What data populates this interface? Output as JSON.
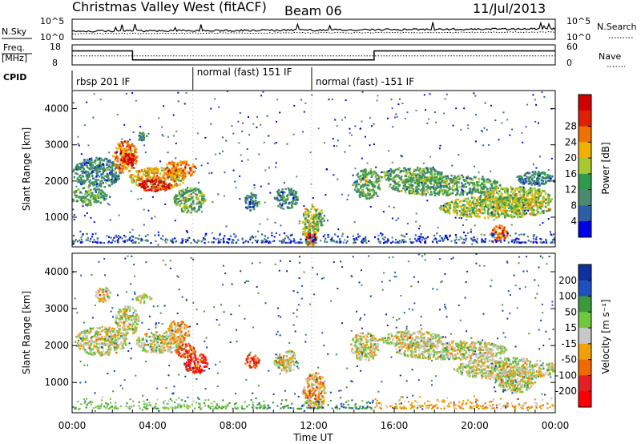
{
  "header": {
    "station": "Christmas Valley West (fitACF)",
    "beam": "Beam 06",
    "date": "11/Jul/2013"
  },
  "chart_data": [
    {
      "type": "line",
      "panel": "noise",
      "left_label": "N.Sky",
      "right_label": "N.Search",
      "left_ticks": [
        "10^5",
        "10^0"
      ],
      "right_ticks": [
        "10^5",
        "10^0"
      ]
    },
    {
      "type": "line",
      "panel": "frequency",
      "ylabel": "Freq.\n[MHz]",
      "left_ticks": [
        18,
        8
      ],
      "right_label": "Nave",
      "right_ticks": [
        60,
        0
      ],
      "freq_steps": [
        {
          "x0": 0.0,
          "x1": 3.0,
          "value": 15.0
        },
        {
          "x0": 3.0,
          "x1": 15.0,
          "value": 10.5
        },
        {
          "x0": 15.0,
          "x1": 24.0,
          "value": 15.0
        }
      ],
      "nave_level": 12.5
    },
    {
      "type": "table",
      "panel": "cpid",
      "label": "CPID",
      "segments": [
        {
          "start": 0.0,
          "text": "rbsp 201 IF"
        },
        {
          "start": 6.0,
          "text": "normal (fast) 151 IF"
        },
        {
          "start": 11.9,
          "text": "normal (fast) -151 IF"
        }
      ]
    },
    {
      "type": "heatmap",
      "panel": "power",
      "ylabel": "Slant Range [km]",
      "xlim": [
        0,
        24
      ],
      "ylim": [
        180,
        4500
      ],
      "yticks": [
        1000,
        2000,
        3000,
        4000
      ],
      "colorbar": {
        "label": "Power [dB]",
        "ticks": [
          4,
          8,
          12,
          16,
          20,
          24,
          28
        ],
        "colors": [
          "#0000e6",
          "#2b5fa8",
          "#4c8a6f",
          "#2e9a4a",
          "#a8c830",
          "#f0b000",
          "#f07000",
          "#e02000",
          "#d00000"
        ]
      },
      "regions": [
        {
          "x": 1.2,
          "y": 2250,
          "rx": 1.2,
          "ry": 420,
          "level": 2
        },
        {
          "x": 2.6,
          "y": 2700,
          "rx": 0.6,
          "ry": 450,
          "level": 6
        },
        {
          "x": 2.8,
          "y": 2600,
          "rx": 0.3,
          "ry": 180,
          "level": 8
        },
        {
          "x": 4.2,
          "y": 2100,
          "rx": 1.4,
          "ry": 300,
          "level": 5
        },
        {
          "x": 4.1,
          "y": 1900,
          "rx": 0.9,
          "ry": 160,
          "level": 8
        },
        {
          "x": 5.3,
          "y": 2350,
          "rx": 0.8,
          "ry": 250,
          "level": 6
        },
        {
          "x": 5.8,
          "y": 1500,
          "rx": 0.8,
          "ry": 350,
          "level": 3
        },
        {
          "x": 0.8,
          "y": 1600,
          "rx": 0.9,
          "ry": 250,
          "level": 3
        },
        {
          "x": 3.4,
          "y": 3250,
          "rx": 0.3,
          "ry": 120,
          "level": 2
        },
        {
          "x": 8.9,
          "y": 1450,
          "rx": 0.4,
          "ry": 250,
          "level": 2
        },
        {
          "x": 10.6,
          "y": 1550,
          "rx": 0.6,
          "ry": 300,
          "level": 2
        },
        {
          "x": 11.8,
          "y": 800,
          "rx": 0.4,
          "ry": 600,
          "level": 4
        },
        {
          "x": 11.8,
          "y": 400,
          "rx": 0.25,
          "ry": 180,
          "level": 7
        },
        {
          "x": 12.2,
          "y": 1000,
          "rx": 0.3,
          "ry": 250,
          "level": 3
        },
        {
          "x": 14.6,
          "y": 1950,
          "rx": 0.7,
          "ry": 420,
          "level": 3
        },
        {
          "x": 16.8,
          "y": 2200,
          "rx": 1.6,
          "ry": 220,
          "level": 3
        },
        {
          "x": 18.5,
          "y": 1900,
          "rx": 2.8,
          "ry": 280,
          "level": 3
        },
        {
          "x": 21.0,
          "y": 1300,
          "rx": 2.8,
          "ry": 300,
          "level": 4
        },
        {
          "x": 22.0,
          "y": 1550,
          "rx": 1.8,
          "ry": 320,
          "level": 4
        },
        {
          "x": 21.2,
          "y": 600,
          "rx": 0.4,
          "ry": 250,
          "level": 6
        },
        {
          "x": 23.0,
          "y": 2100,
          "rx": 1.0,
          "ry": 200,
          "level": 2
        }
      ]
    },
    {
      "type": "heatmap",
      "panel": "velocity",
      "ylabel": "Slant Range [km]",
      "xlabel": "Time UT",
      "xlim": [
        0,
        24
      ],
      "xticks": [
        "00:00",
        "04:00",
        "08:00",
        "12:00",
        "16:00",
        "20:00",
        "00:00"
      ],
      "ylim": [
        180,
        4500
      ],
      "yticks": [
        1000,
        2000,
        3000,
        4000
      ],
      "colorbar": {
        "label": "Velocity [m s⁻¹]",
        "ticks": [
          200,
          100,
          50,
          15,
          -15,
          -50,
          -100,
          -200
        ],
        "colors": [
          "#1030a0",
          "#2050c0",
          "#3a9a3a",
          "#70c840",
          "#c8c8c8",
          "#f0a000",
          "#f06a00",
          "#e62020",
          "#ff0000"
        ]
      },
      "regions": [
        {
          "x": 1.4,
          "y": 2150,
          "rx": 1.3,
          "ry": 400,
          "level": 4
        },
        {
          "x": 2.7,
          "y": 2700,
          "rx": 0.6,
          "ry": 400,
          "level": 4
        },
        {
          "x": 4.3,
          "y": 2100,
          "rx": 1.2,
          "ry": 300,
          "level": 4
        },
        {
          "x": 5.2,
          "y": 2400,
          "rx": 0.6,
          "ry": 300,
          "level": 5
        },
        {
          "x": 6.1,
          "y": 1550,
          "rx": 0.6,
          "ry": 280,
          "level": 7
        },
        {
          "x": 5.6,
          "y": 1900,
          "rx": 0.5,
          "ry": 200,
          "level": 6
        },
        {
          "x": 8.9,
          "y": 1600,
          "rx": 0.35,
          "ry": 200,
          "level": 7
        },
        {
          "x": 10.6,
          "y": 1600,
          "rx": 0.6,
          "ry": 300,
          "level": 4
        },
        {
          "x": 12.0,
          "y": 800,
          "rx": 0.6,
          "ry": 500,
          "level": 5
        },
        {
          "x": 14.5,
          "y": 2000,
          "rx": 0.7,
          "ry": 400,
          "level": 4
        },
        {
          "x": 16.8,
          "y": 2200,
          "rx": 1.6,
          "ry": 220,
          "level": 4
        },
        {
          "x": 18.8,
          "y": 1900,
          "rx": 2.8,
          "ry": 260,
          "level": 4
        },
        {
          "x": 21.5,
          "y": 1400,
          "rx": 2.6,
          "ry": 300,
          "level": 4
        },
        {
          "x": 22.0,
          "y": 1100,
          "rx": 1.0,
          "ry": 350,
          "level": 4
        },
        {
          "x": 3.5,
          "y": 3300,
          "rx": 0.4,
          "ry": 120,
          "level": 4
        },
        {
          "x": 1.5,
          "y": 3400,
          "rx": 0.4,
          "ry": 200,
          "level": 4
        }
      ],
      "ground_band": [
        {
          "x0": 0.0,
          "x1": 9.0,
          "level": 3
        },
        {
          "x0": 9.0,
          "x1": 15.0,
          "level": 2
        },
        {
          "x0": 15.0,
          "x1": 24.0,
          "level": 5
        }
      ]
    }
  ]
}
